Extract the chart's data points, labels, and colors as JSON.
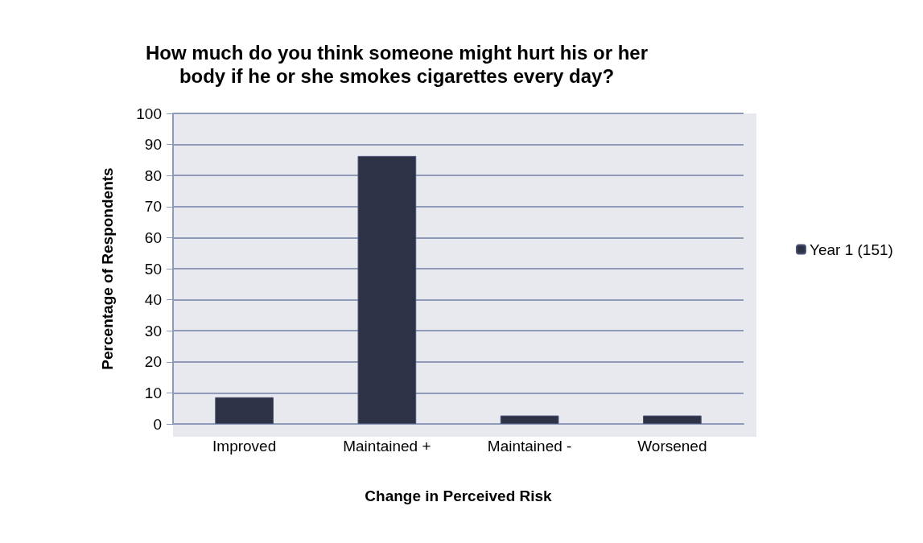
{
  "chart_data": {
    "type": "bar",
    "title": "How much do you think someone might hurt his or her\nbody if he or she smokes cigarettes every day?",
    "xlabel": "Change in Perceived Risk",
    "ylabel": "Percentage of Respondents",
    "categories": [
      "Improved",
      "Maintained +",
      "Maintained -",
      "Worsened"
    ],
    "series": [
      {
        "name": "Year 1 (151)",
        "color": "#2d3246",
        "values": [
          8.6,
          86.3,
          2.7,
          2.7
        ]
      }
    ],
    "ylim": [
      0,
      100
    ],
    "yticks": [
      0,
      10,
      20,
      30,
      40,
      50,
      60,
      70,
      80,
      90,
      100
    ],
    "grid": "y",
    "legend": "right"
  }
}
